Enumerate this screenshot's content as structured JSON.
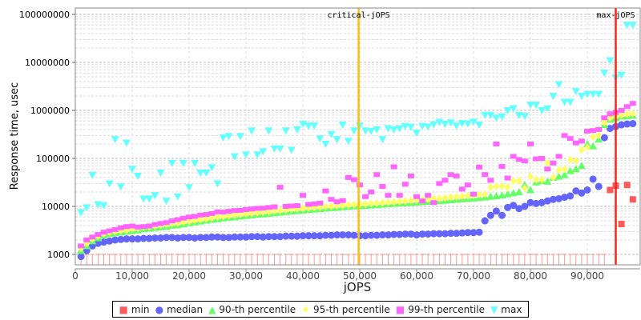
{
  "chart_data": {
    "type": "scatter",
    "title": "",
    "xlabel": "jOPS",
    "ylabel": "Response time, usec",
    "xlim": [
      0,
      99000
    ],
    "ylim": [
      1000,
      100000000
    ],
    "yscale": "log",
    "x_start": 1000,
    "x_step": 1000,
    "xticks": [
      "0",
      "10,000",
      "20,000",
      "30,000",
      "40,000",
      "50,000",
      "60,000",
      "70,000",
      "80,000",
      "90,000"
    ],
    "yticks": [
      "1000",
      "10000",
      "100000",
      "1000000",
      "10000000",
      "100000000"
    ],
    "grid": true,
    "legend_position": "bottom",
    "markers": [
      {
        "label": "critical-jOPS",
        "x": 49800,
        "color": "#ffc000"
      },
      {
        "label": "max-jOPS",
        "x": 95000,
        "color": "#ff2020"
      }
    ],
    "series": [
      {
        "name": "min",
        "color": "#ff5a5a",
        "shape": "square",
        "values": [
          1000,
          1000,
          1000,
          1000,
          1000,
          1000,
          1000,
          1000,
          1000,
          1000,
          1000,
          1000,
          1000,
          1000,
          1000,
          1000,
          1000,
          1000,
          1000,
          1000,
          1000,
          1000,
          1000,
          1000,
          1000,
          1000,
          1000,
          1000,
          1000,
          1000,
          1000,
          1000,
          1000,
          1000,
          1000,
          1000,
          1000,
          1000,
          1000,
          1000,
          1000,
          1000,
          1000,
          1000,
          1000,
          1000,
          1000,
          1000,
          1000,
          1000,
          1000,
          1000,
          1000,
          1000,
          1000,
          1000,
          1000,
          1000,
          1000,
          1000,
          1000,
          1000,
          1000,
          1000,
          1000,
          1000,
          1000,
          1000,
          1000,
          1000,
          1000,
          1000,
          1000,
          1000,
          1000,
          1000,
          1000,
          1000,
          1000,
          1000,
          1000,
          1000,
          1000,
          1000,
          1000,
          1000,
          1000,
          1000,
          1000,
          1000,
          1000,
          1000,
          1000,
          22000,
          27000,
          4300,
          28000,
          14000
        ]
      },
      {
        "name": "median",
        "color": "#6464ff",
        "shape": "circle",
        "values": [
          900,
          1200,
          1500,
          1700,
          1800,
          1900,
          2000,
          2050,
          2100,
          2100,
          2100,
          2150,
          2150,
          2200,
          2200,
          2250,
          2250,
          2200,
          2250,
          2250,
          2200,
          2250,
          2250,
          2300,
          2300,
          2250,
          2250,
          2300,
          2300,
          2300,
          2350,
          2350,
          2300,
          2350,
          2350,
          2350,
          2400,
          2400,
          2400,
          2450,
          2450,
          2450,
          2450,
          2500,
          2500,
          2550,
          2550,
          2550,
          2500,
          2450,
          2450,
          2500,
          2500,
          2550,
          2550,
          2600,
          2600,
          2650,
          2650,
          2550,
          2650,
          2650,
          2700,
          2700,
          2700,
          2750,
          2750,
          2800,
          2850,
          2850,
          2900,
          5000,
          6500,
          8000,
          6500,
          9500,
          10500,
          9000,
          10000,
          12000,
          11500,
          12000,
          13000,
          14000,
          14500,
          15500,
          16500,
          21000,
          19000,
          22000,
          37000,
          26000,
          270000,
          420000,
          460000,
          500000,
          520000,
          530000
        ]
      },
      {
        "name": "90-th percentile",
        "color": "#64ff64",
        "shape": "triangle-up",
        "values": [
          1200,
          1500,
          1900,
          2200,
          2500,
          2700,
          2800,
          2900,
          3000,
          3100,
          3200,
          3400,
          3500,
          3600,
          3700,
          3800,
          4000,
          4100,
          4300,
          4500,
          4700,
          4900,
          5100,
          5300,
          5500,
          5700,
          5900,
          6000,
          6200,
          6400,
          6600,
          6800,
          6900,
          7100,
          7300,
          7500,
          7700,
          7900,
          8100,
          8300,
          8500,
          8700,
          8900,
          9100,
          9300,
          9500,
          9700,
          9900,
          10100,
          10200,
          10400,
          10600,
          10800,
          11000,
          11200,
          11400,
          11600,
          11800,
          12000,
          12200,
          12400,
          12600,
          12800,
          13000,
          13300,
          13600,
          13900,
          14200,
          14500,
          14800,
          15100,
          15500,
          16000,
          16500,
          17000,
          18000,
          19000,
          20000,
          28000,
          22000,
          32000,
          34000,
          33000,
          40000,
          42000,
          45000,
          55000,
          60000,
          70000,
          200000,
          180000,
          250000,
          500000,
          650000,
          700000,
          750000,
          760000,
          780000
        ]
      },
      {
        "name": "95-th percentile",
        "color": "#ffff64",
        "shape": "diamond",
        "values": [
          1350,
          1700,
          2100,
          2400,
          2700,
          2900,
          3000,
          3100,
          3200,
          3400,
          3500,
          3700,
          3800,
          3900,
          4100,
          4200,
          4400,
          4500,
          4700,
          4900,
          5100,
          5300,
          5500,
          5800,
          6000,
          6200,
          6400,
          6600,
          6800,
          7000,
          7200,
          7400,
          7600,
          7800,
          8000,
          8200,
          8400,
          8700,
          8900,
          9100,
          9300,
          9500,
          9700,
          9900,
          10100,
          10300,
          10500,
          10700,
          10900,
          11100,
          11300,
          11500,
          11700,
          11900,
          12100,
          12300,
          12600,
          12900,
          13200,
          13500,
          13800,
          14100,
          14400,
          14700,
          15000,
          15400,
          15800,
          16200,
          16600,
          17000,
          17500,
          18000,
          25000,
          26000,
          26500,
          25000,
          34000,
          34000,
          24000,
          42000,
          36000,
          36000,
          80000,
          40000,
          57000,
          60000,
          95000,
          90000,
          150000,
          170000,
          280000,
          300000,
          560000,
          700000,
          750000,
          800000,
          830000,
          850000
        ]
      },
      {
        "name": "99-th percentile",
        "color": "#ff64ff",
        "shape": "rect",
        "values": [
          1500,
          2000,
          2300,
          2600,
          2900,
          3100,
          3300,
          3600,
          3800,
          3900,
          3700,
          3800,
          3900,
          4200,
          4400,
          4600,
          5000,
          5300,
          5700,
          6000,
          6200,
          6600,
          6800,
          7100,
          7700,
          7600,
          7900,
          8200,
          8300,
          8600,
          8800,
          9100,
          9200,
          9500,
          9800,
          25000,
          10000,
          10200,
          10400,
          17000,
          11000,
          11300,
          11700,
          21000,
          14000,
          12500,
          13200,
          40000,
          36000,
          28000,
          16000,
          20000,
          46000,
          26000,
          17000,
          67000,
          17000,
          29000,
          43000,
          16000,
          13000,
          17000,
          12000,
          30000,
          35000,
          46000,
          43000,
          23000,
          28000,
          18000,
          66000,
          46000,
          35000,
          200000,
          68000,
          39000,
          110000,
          95000,
          88000,
          200000,
          98000,
          100000,
          60000,
          80000,
          110000,
          300000,
          260000,
          210000,
          230000,
          370000,
          380000,
          400000,
          700000,
          850000,
          900000,
          1000000,
          1200000,
          1400000
        ]
      },
      {
        "name": "max",
        "color": "#64ffff",
        "shape": "triangle-down",
        "values": [
          7500,
          9500,
          45000,
          11000,
          10500,
          30000,
          250000,
          26000,
          210000,
          60000,
          43000,
          14500,
          14500,
          17000,
          50000,
          13000,
          80000,
          16000,
          80000,
          25000,
          80000,
          50000,
          50000,
          65000,
          30000,
          270000,
          290000,
          110000,
          290000,
          120000,
          380000,
          120000,
          140000,
          380000,
          160000,
          160000,
          380000,
          150000,
          400000,
          520000,
          480000,
          480000,
          260000,
          200000,
          320000,
          250000,
          500000,
          230000,
          380000,
          480000,
          380000,
          370000,
          400000,
          250000,
          420000,
          400000,
          420000,
          470000,
          450000,
          340000,
          470000,
          460000,
          510000,
          570000,
          520000,
          560000,
          480000,
          540000,
          530000,
          580000,
          500000,
          800000,
          800000,
          700000,
          740000,
          1000000,
          1100000,
          800000,
          760000,
          1300000,
          1300000,
          1000000,
          1100000,
          2000000,
          3500000,
          1500000,
          1500000,
          2500000,
          2000000,
          2200000,
          2200000,
          2200000,
          6000000,
          11000000,
          4800000,
          5500000,
          60000000,
          60000000
        ]
      }
    ]
  }
}
